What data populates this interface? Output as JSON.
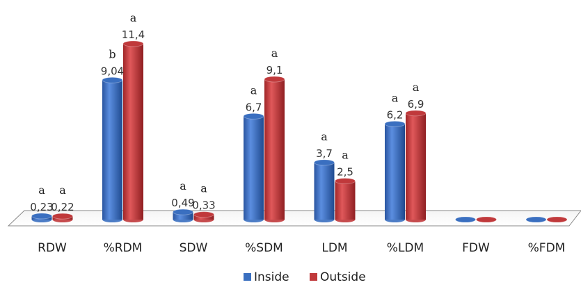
{
  "chart_data": {
    "type": "bar",
    "categories": [
      "RDW",
      "%RDM",
      "SDW",
      "%SDM",
      "LDM",
      "%LDM",
      "FDW",
      "%FDM"
    ],
    "series": [
      {
        "name": "Inside",
        "color": "#3a6fc0",
        "values": [
          0.23,
          9.04,
          0.49,
          6.7,
          3.7,
          6.2,
          0,
          0
        ],
        "labels": [
          "0,23",
          "9,04",
          "0,49",
          "6,7",
          "3,7",
          "6,2",
          "",
          ""
        ],
        "letters": [
          "a",
          "b",
          "a",
          "a",
          "a",
          "a",
          "",
          ""
        ]
      },
      {
        "name": "Outside",
        "color": "#c0393b",
        "values": [
          0.22,
          11.4,
          0.33,
          9.1,
          2.5,
          6.9,
          0,
          0
        ],
        "labels": [
          "0,22",
          "11,4",
          "0,33",
          "9,1",
          "2,5",
          "6,9",
          "",
          ""
        ],
        "letters": [
          "a",
          "a",
          "a",
          "a",
          "a",
          "a",
          "",
          ""
        ]
      }
    ],
    "ylim": [
      0,
      12
    ],
    "grid": false,
    "legend_position": "bottom-center",
    "style": "3d-cylinder"
  }
}
